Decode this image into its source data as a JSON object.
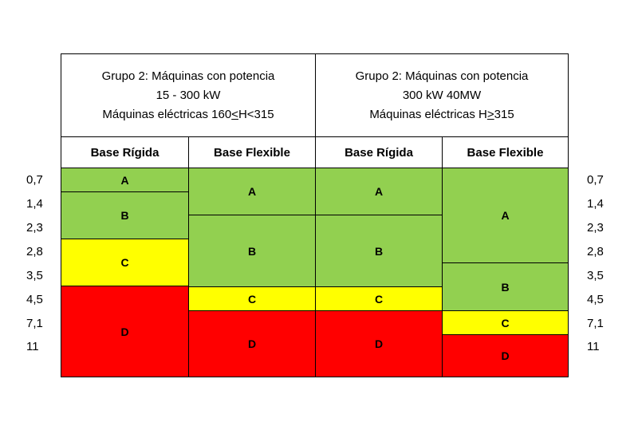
{
  "groups": [
    {
      "line1": "Grupo 2: Máquinas con potencia",
      "line2": "15 - 300 kW",
      "line3_prefix": "Máquinas eléctricas 160",
      "line3_ul": "<",
      "line3_suffix": "H<315"
    },
    {
      "line1": "Grupo 2: Máquinas con potencia",
      "line2": "300 kW 40MW",
      "line3_prefix": "Máquinas eléctricas H",
      "line3_ul": ">",
      "line3_suffix": "315"
    }
  ],
  "subheaders": [
    "Base Rígida",
    "Base Flexible",
    "Base Rígida",
    "Base Flexible"
  ],
  "y_labels": [
    "0,7",
    "1,4",
    "2,3",
    "2,8",
    "3,5",
    "4,5",
    "7,1",
    "11"
  ],
  "zones": {
    "col1": [
      {
        "label": "A",
        "from": "0,7",
        "to": "1,4"
      },
      {
        "label": "B",
        "from": "1,4",
        "to": "2,8"
      },
      {
        "label": "C",
        "from": "2,8",
        "to": "4,5"
      },
      {
        "label": "D",
        "from": "4,5",
        "to": "11"
      }
    ],
    "col2": [
      {
        "label": "A",
        "from": "0,7",
        "to": "2,3"
      },
      {
        "label": "B",
        "from": "2,3",
        "to": "4,5"
      },
      {
        "label": "C",
        "from": "4,5",
        "to": "7,1"
      },
      {
        "label": "D",
        "from": "7,1",
        "to": "11"
      }
    ],
    "col3": [
      {
        "label": "A",
        "from": "0,7",
        "to": "2,3"
      },
      {
        "label": "B",
        "from": "2,3",
        "to": "4,5"
      },
      {
        "label": "C",
        "from": "4,5",
        "to": "7,1"
      },
      {
        "label": "D",
        "from": "7,1",
        "to": "11"
      }
    ],
    "col4": [
      {
        "label": "A",
        "from": "0,7",
        "to": "3,5"
      },
      {
        "label": "B",
        "from": "3,5",
        "to": "7,1"
      },
      {
        "label": "C",
        "from": "7,1",
        "to": "11"
      },
      {
        "label": "D",
        "from": "11",
        "to": ""
      }
    ]
  },
  "colors": {
    "A": "#92d050",
    "B": "#92d050",
    "C": "#ffff00",
    "D": "#ff0000"
  }
}
